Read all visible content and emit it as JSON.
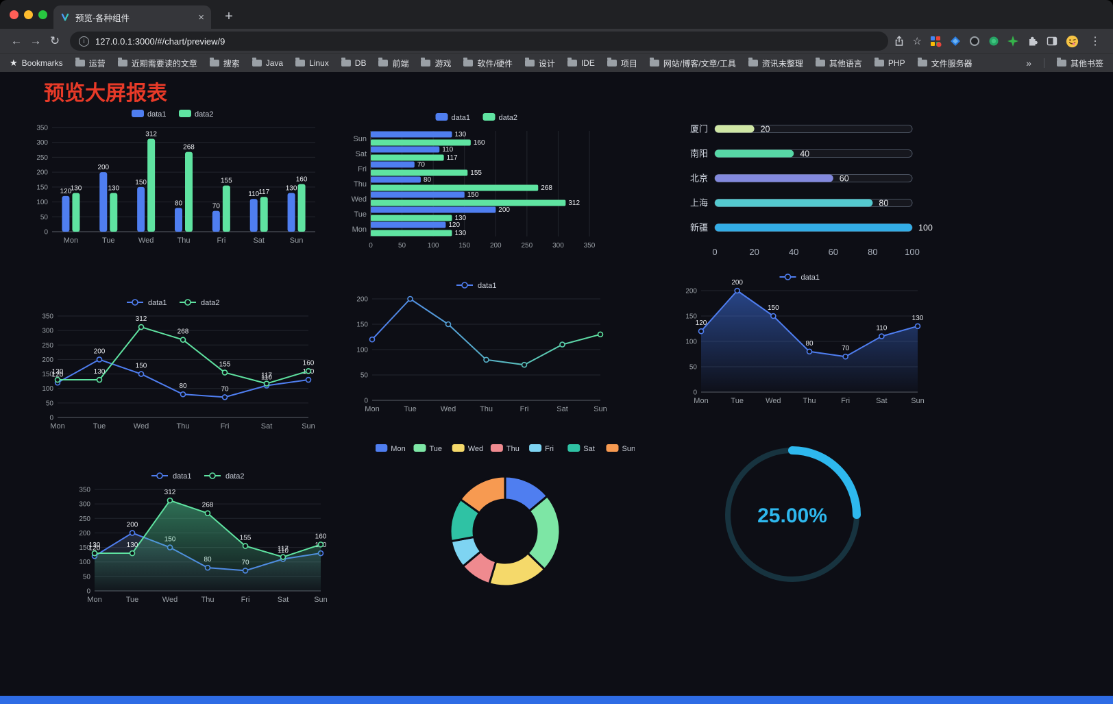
{
  "browser": {
    "tab_title": "预览-各种组件",
    "url": "127.0.0.1:3000/#/chart/preview/9",
    "glyphs": {
      "back": "←",
      "forward": "→",
      "reload": "↻",
      "close": "×",
      "new_tab": "+",
      "menu": "⋮",
      "bookmark_star": "☆",
      "bookmarks_star": "★",
      "info": "i",
      "overflow": "»"
    },
    "bookmarks_label": "Bookmarks",
    "bookmark_folders": [
      "运营",
      "近期需要读的文章",
      "搜索",
      "Java",
      "Linux",
      "DB",
      "前端",
      "游戏",
      "软件/硬件",
      "设计",
      "IDE",
      "项目",
      "网站/博客/文章/工具",
      "资讯未整理",
      "其他语言",
      "PHP",
      "文件服务器"
    ],
    "overflow": "»",
    "other_bookmarks_label": "其他书签"
  },
  "page": {
    "title": "预览大屏报表",
    "title_color": "#e83a28",
    "background": "#0d0e15",
    "accent_bar_color": "#2e6ce5"
  },
  "chart_data": [
    {
      "id": "weekly-bar",
      "type": "bar",
      "categories": [
        "Mon",
        "Tue",
        "Wed",
        "Thu",
        "Fri",
        "Sat",
        "Sun"
      ],
      "series": [
        {
          "name": "data1",
          "color": "#4f7ef0",
          "values": [
            120,
            200,
            150,
            80,
            70,
            110,
            130
          ],
          "labels": true
        },
        {
          "name": "data2",
          "color": "#5fe3a1",
          "values": [
            130,
            130,
            312,
            268,
            155,
            117,
            160
          ],
          "labels": true
        }
      ],
      "ylim": [
        0,
        350
      ],
      "ytick": 50,
      "legend_position": "top",
      "grid": true
    },
    {
      "id": "weekly-hbar",
      "type": "hbar",
      "categories": [
        "Mon",
        "Tue",
        "Wed",
        "Thu",
        "Fri",
        "Sat",
        "Sun"
      ],
      "series": [
        {
          "name": "data1",
          "color": "#4f7ef0",
          "values": [
            120,
            200,
            150,
            80,
            70,
            110,
            130
          ],
          "labels": true
        },
        {
          "name": "data2",
          "color": "#5fe3a1",
          "values": [
            130,
            130,
            312,
            268,
            155,
            117,
            160
          ],
          "labels": true
        }
      ],
      "xlim": [
        0,
        350
      ],
      "xtick": 50,
      "legend_position": "top",
      "grid": true
    },
    {
      "id": "city-progress",
      "type": "progress",
      "categories": [
        "厦门",
        "南阳",
        "北京",
        "上海",
        "新疆"
      ],
      "values": [
        20,
        40,
        60,
        80,
        100
      ],
      "colors": [
        "#cfe6a4",
        "#57d7a6",
        "#8288dd",
        "#54c9cf",
        "#33ade6"
      ],
      "xlim": [
        0,
        100
      ],
      "xticks": [
        0,
        20,
        40,
        60,
        80,
        100
      ]
    },
    {
      "id": "weekly-line-two-series",
      "type": "line",
      "categories": [
        "Mon",
        "Tue",
        "Wed",
        "Thu",
        "Fri",
        "Sat",
        "Sun"
      ],
      "series": [
        {
          "name": "data1",
          "color": "#4f7ef0",
          "values": [
            120,
            200,
            150,
            80,
            70,
            110,
            130
          ],
          "labels": true
        },
        {
          "name": "data2",
          "color": "#5fe3a1",
          "values": [
            130,
            130,
            312,
            268,
            155,
            117,
            160
          ],
          "labels": true
        }
      ],
      "ylim": [
        0,
        350
      ],
      "ytick": 50,
      "legend_position": "top",
      "grid": true
    },
    {
      "id": "weekly-line-gradient",
      "type": "line",
      "categories": [
        "Mon",
        "Tue",
        "Wed",
        "Thu",
        "Fri",
        "Sat",
        "Sun"
      ],
      "series": [
        {
          "name": "data1",
          "gradient": [
            "#4f7ef0",
            "#5fe3a1"
          ],
          "values": [
            120,
            200,
            150,
            80,
            70,
            110,
            130
          ],
          "labels": false
        }
      ],
      "ylim": [
        0,
        200
      ],
      "ytick": 50,
      "legend_position": "top",
      "grid": true
    },
    {
      "id": "weekly-area",
      "type": "line",
      "categories": [
        "Mon",
        "Tue",
        "Wed",
        "Thu",
        "Fri",
        "Sat",
        "Sun"
      ],
      "series": [
        {
          "name": "data1",
          "color": "#4f7ef0",
          "values": [
            120,
            200,
            150,
            80,
            70,
            110,
            130
          ],
          "labels": true,
          "area": [
            "rgba(62,114,228,0.55)",
            "rgba(62,114,228,0.02)"
          ]
        }
      ],
      "ylim": [
        0,
        200
      ],
      "ytick": 50,
      "legend_position": "top",
      "grid": true
    },
    {
      "id": "weekly-line-green-area",
      "type": "line",
      "categories": [
        "Mon",
        "Tue",
        "Wed",
        "Thu",
        "Fri",
        "Sat",
        "Sun"
      ],
      "series": [
        {
          "name": "data1",
          "color": "#4f7ef0",
          "values": [
            120,
            200,
            150,
            80,
            70,
            110,
            130
          ],
          "labels": true,
          "area": [
            "rgba(120,150,200,0.22)",
            "rgba(120,150,200,0.02)"
          ]
        },
        {
          "name": "data2",
          "color": "#5fe3a1",
          "values": [
            130,
            130,
            312,
            268,
            155,
            117,
            160
          ],
          "labels": true,
          "area": [
            "rgba(80,210,150,0.50)",
            "rgba(80,210,150,0.03)"
          ]
        }
      ],
      "ylim": [
        0,
        350
      ],
      "ytick": 50,
      "legend_position": "top",
      "grid": true
    },
    {
      "id": "weekday-donut",
      "type": "pie",
      "categories": [
        "Mon",
        "Tue",
        "Wed",
        "Thu",
        "Fri",
        "Sat",
        "Sun"
      ],
      "values": [
        120,
        200,
        150,
        80,
        70,
        110,
        130
      ],
      "colors": [
        "#4f7ef0",
        "#7de6a5",
        "#f5d96a",
        "#ef8a8f",
        "#7ed4f2",
        "#2fc2a4",
        "#f79a51"
      ],
      "legend_position": "top"
    },
    {
      "id": "percentage-gauge",
      "type": "gauge",
      "value": 25,
      "label": "25.00%",
      "color": "#2eb8ee",
      "track_color": "#17333f"
    }
  ]
}
